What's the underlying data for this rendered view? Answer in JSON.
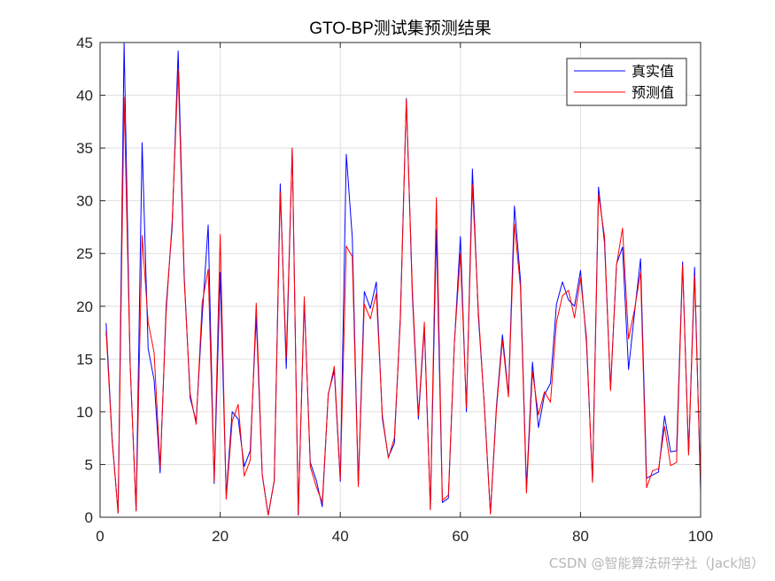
{
  "chart_data": {
    "type": "line",
    "title": "GTO-BP测试集预测结果",
    "xlabel": "",
    "ylabel": "",
    "xlim": [
      0,
      100
    ],
    "ylim": [
      0,
      45
    ],
    "xticks": [
      0,
      20,
      40,
      60,
      80,
      100
    ],
    "yticks": [
      0,
      5,
      10,
      15,
      20,
      25,
      30,
      35,
      40,
      45
    ],
    "grid": true,
    "legend_position": "top-right",
    "x": [
      1,
      2,
      3,
      4,
      5,
      6,
      7,
      8,
      9,
      10,
      11,
      12,
      13,
      14,
      15,
      16,
      17,
      18,
      19,
      20,
      21,
      22,
      23,
      24,
      25,
      26,
      27,
      28,
      29,
      30,
      31,
      32,
      33,
      34,
      35,
      36,
      37,
      38,
      39,
      40,
      41,
      42,
      43,
      44,
      45,
      46,
      47,
      48,
      49,
      50,
      51,
      52,
      53,
      54,
      55,
      56,
      57,
      58,
      59,
      60,
      61,
      62,
      63,
      64,
      65,
      66,
      67,
      68,
      69,
      70,
      71,
      72,
      73,
      74,
      75,
      76,
      77,
      78,
      79,
      80,
      81,
      82,
      83,
      84,
      85,
      86,
      87,
      88,
      89,
      90,
      91,
      92,
      93,
      94,
      95,
      96,
      97,
      98,
      99,
      100
    ],
    "series": [
      {
        "name": "真实值",
        "color": "#0000ff",
        "values": [
          18.4,
          7.5,
          0.4,
          45.0,
          14.5,
          0.6,
          35.5,
          16.0,
          13.0,
          4.2,
          20.0,
          27.5,
          44.2,
          23.0,
          11.3,
          9.1,
          19.0,
          27.7,
          3.2,
          23.2,
          2.1,
          10.0,
          9.3,
          4.8,
          6.3,
          19.0,
          4.0,
          0.2,
          3.5,
          31.6,
          14.1,
          35.0,
          0.2,
          20.5,
          5.2,
          3.5,
          1.0,
          11.7,
          13.9,
          3.4,
          34.4,
          26.5,
          3.0,
          21.4,
          19.8,
          22.3,
          9.4,
          5.7,
          7.0,
          19.0,
          39.7,
          21.0,
          9.3,
          18.0,
          0.8,
          27.3,
          1.4,
          1.8,
          16.5,
          26.6,
          10.0,
          33.0,
          19.0,
          10.5,
          0.4,
          10.5,
          17.3,
          11.6,
          29.5,
          22.5,
          2.8,
          14.7,
          8.5,
          11.6,
          12.7,
          20.2,
          22.3,
          20.6,
          20.0,
          23.4,
          16.5,
          3.4,
          31.3,
          26.0,
          12.2,
          24.0,
          25.6,
          14.0,
          19.4,
          24.5,
          3.7,
          4.0,
          4.3,
          9.6,
          6.2,
          6.3,
          24.2,
          6.0,
          23.7,
          2.4
        ],
        "values_display": "data"
      },
      {
        "name": "预测值",
        "color": "#ff0000",
        "values": [
          17.7,
          7.3,
          0.4,
          39.8,
          14.6,
          0.6,
          26.7,
          18.5,
          15.6,
          4.7,
          19.4,
          28.0,
          42.4,
          22.6,
          11.7,
          8.8,
          20.3,
          23.5,
          3.4,
          26.8,
          1.7,
          9.1,
          10.7,
          3.9,
          5.4,
          20.3,
          4.1,
          0.2,
          3.4,
          30.8,
          15.1,
          35.0,
          0.2,
          20.9,
          4.8,
          2.9,
          1.4,
          11.6,
          14.3,
          3.6,
          25.7,
          24.7,
          2.9,
          20.2,
          18.8,
          21.2,
          9.7,
          5.6,
          7.5,
          18.6,
          39.6,
          21.6,
          9.6,
          18.5,
          0.7,
          30.3,
          1.6,
          2.1,
          16.5,
          25.0,
          10.4,
          31.5,
          19.5,
          10.4,
          0.3,
          10.2,
          16.8,
          11.4,
          27.8,
          21.8,
          2.3,
          13.8,
          9.7,
          11.9,
          10.9,
          18.5,
          21.0,
          21.5,
          18.9,
          22.7,
          17.0,
          3.3,
          30.6,
          26.6,
          12.0,
          23.9,
          27.4,
          16.9,
          19.7,
          23.2,
          2.8,
          4.4,
          4.6,
          8.6,
          4.9,
          5.2,
          23.9,
          5.9,
          22.9,
          3.0
        ]
      }
    ]
  },
  "watermark": "CSDN @智能算法研学社（Jack旭）"
}
